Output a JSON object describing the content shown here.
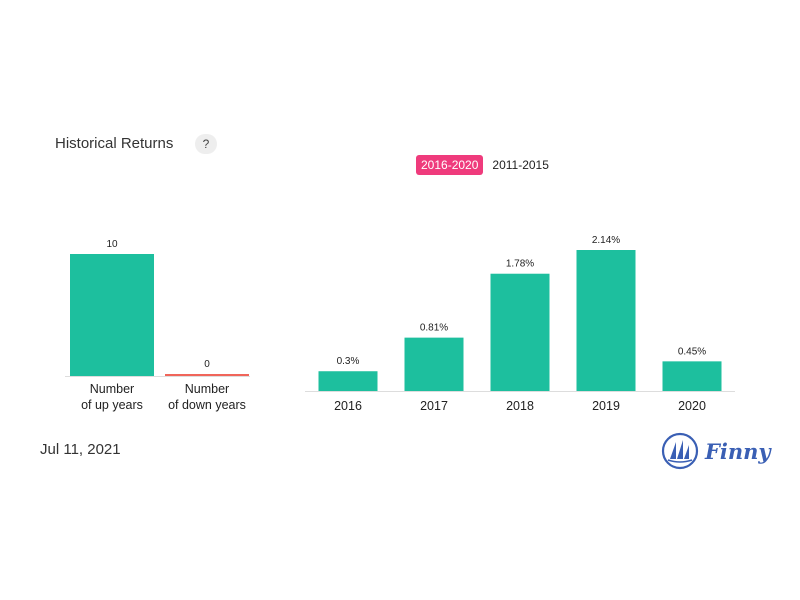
{
  "header": {
    "title": "Historical Returns",
    "help_label": "?"
  },
  "tabs": [
    {
      "label": "2016-2020",
      "active": true
    },
    {
      "label": "2011-2015",
      "active": false
    }
  ],
  "footer": {
    "date": "Jul 11, 2021",
    "brand": "Finny"
  },
  "colors": {
    "bar": "#1dbf9e",
    "down": "#f0655a",
    "tab_active": "#ef3b7c",
    "brand": "#3a5fb4"
  },
  "chart_data": [
    {
      "type": "bar",
      "categories": [
        [
          "Number",
          "of up years"
        ],
        [
          "Number",
          "of down years"
        ]
      ],
      "values": [
        10,
        0
      ],
      "data_labels": [
        "10",
        "0"
      ],
      "ylim": [
        0,
        10
      ]
    },
    {
      "type": "bar",
      "categories": [
        "2016",
        "2017",
        "2018",
        "2019",
        "2020"
      ],
      "values": [
        0.3,
        0.81,
        1.78,
        2.14,
        0.45
      ],
      "data_labels": [
        "0.3%",
        "0.81%",
        "1.78%",
        "2.14%",
        "0.45%"
      ],
      "ylim": [
        0,
        2.14
      ]
    }
  ]
}
